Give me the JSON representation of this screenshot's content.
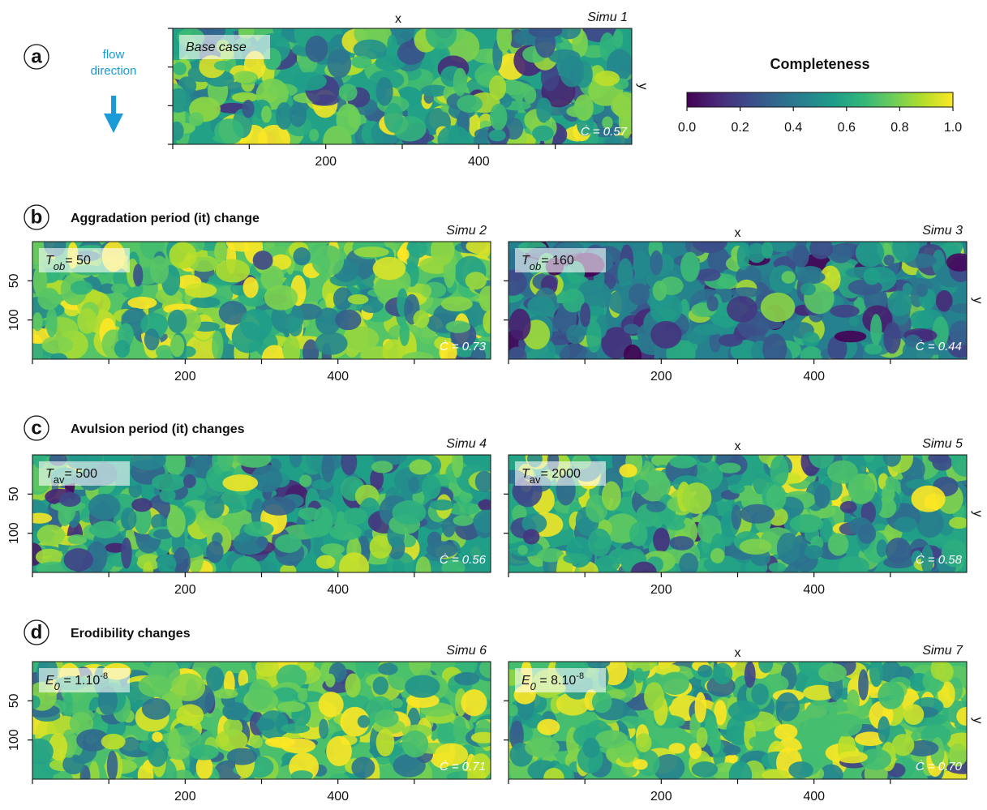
{
  "flow_label": [
    "flow",
    "direction"
  ],
  "sections": [
    {
      "letter": "a"
    },
    {
      "letter": "b",
      "title": "Aggradation period (it) change"
    },
    {
      "letter": "c",
      "title": "Avulsion period (it) changes"
    },
    {
      "letter": "d",
      "title": "Erodibility changes"
    }
  ],
  "chart_data": [
    {
      "type": "colorbar",
      "title": "Completeness",
      "colormap": "viridis",
      "xlim": [
        0,
        1
      ],
      "xticks": [
        {
          "value": 0,
          "label": "0.0"
        },
        {
          "value": 0.2,
          "label": "0.2"
        },
        {
          "value": 0.4,
          "label": "0.4"
        },
        {
          "value": 0.6,
          "label": "0.6"
        },
        {
          "value": 0.8,
          "label": "0.8"
        },
        {
          "value": 1,
          "label": "1.0"
        }
      ]
    },
    {
      "type": "heatmap",
      "title": "Simu 1",
      "xlabel": "x",
      "ylabel": "y",
      "annotation": [
        {
          "text": "Base case",
          "style": "italic"
        }
      ],
      "completeness": 0.57,
      "completeness_label": "Ċ = 0.57",
      "xlim": [
        0,
        600
      ],
      "ylim": [
        0,
        150
      ],
      "xticks": [
        200,
        400
      ],
      "xminor": [
        0,
        100,
        300,
        500
      ],
      "yticks": [
        0,
        50,
        100,
        150
      ],
      "ytick_labels": false
    },
    {
      "type": "heatmap",
      "title": "Simu 2",
      "annotation": [
        {
          "text": "T",
          "style": "italic"
        },
        {
          "text": "ob",
          "style": "italic-sub"
        },
        {
          "text": "= 50"
        }
      ],
      "completeness": 0.73,
      "completeness_label": "Ċ = 0.73",
      "xlim": [
        0,
        600
      ],
      "ylim": [
        0,
        150
      ],
      "xticks": [
        200,
        400
      ],
      "xminor": [
        0,
        100,
        300,
        500
      ],
      "yticks": [
        50,
        100
      ],
      "ytick_labels": true
    },
    {
      "type": "heatmap",
      "title": "Simu 3",
      "xlabel": "x",
      "ylabel": "y",
      "annotation": [
        {
          "text": "T",
          "style": "italic"
        },
        {
          "text": "ob",
          "style": "italic-sub"
        },
        {
          "text": "= 160"
        }
      ],
      "completeness": 0.44,
      "completeness_label": "Ċ = 0.44",
      "xlim": [
        0,
        600
      ],
      "ylim": [
        0,
        150
      ],
      "xticks": [
        200,
        400
      ],
      "xminor": [
        0,
        100,
        300,
        500
      ],
      "yticks": [
        50,
        100
      ],
      "ytick_labels": false
    },
    {
      "type": "heatmap",
      "title": "Simu 4",
      "annotation": [
        {
          "text": "T",
          "style": "italic"
        },
        {
          "text": "av",
          "style": "sub"
        },
        {
          "text": "= 500"
        }
      ],
      "completeness": 0.56,
      "completeness_label": "Ċ = 0.56",
      "xlim": [
        0,
        600
      ],
      "ylim": [
        0,
        150
      ],
      "xticks": [
        200,
        400
      ],
      "xminor": [
        0,
        100,
        300,
        500
      ],
      "yticks": [
        50,
        100
      ],
      "ytick_labels": true
    },
    {
      "type": "heatmap",
      "title": "Simu 5",
      "xlabel": "x",
      "ylabel": "y",
      "annotation": [
        {
          "text": "T",
          "style": "italic"
        },
        {
          "text": "av",
          "style": "sub"
        },
        {
          "text": "= 2000"
        }
      ],
      "completeness": 0.58,
      "completeness_label": "Ċ = 0.58",
      "xlim": [
        0,
        600
      ],
      "ylim": [
        0,
        150
      ],
      "xticks": [
        200,
        400
      ],
      "xminor": [
        0,
        100,
        300,
        500
      ],
      "yticks": [
        50,
        100
      ],
      "ytick_labels": false
    },
    {
      "type": "heatmap",
      "title": "Simu 6",
      "annotation": [
        {
          "text": "E",
          "style": "italic"
        },
        {
          "text": "0",
          "style": "italic-sub"
        },
        {
          "text": " = 1.10"
        },
        {
          "text": "-8",
          "style": "sup"
        }
      ],
      "completeness": 0.71,
      "completeness_label": "Ċ = 0.71",
      "xlim": [
        0,
        600
      ],
      "ylim": [
        0,
        150
      ],
      "xticks": [
        200,
        400
      ],
      "xminor": [
        0,
        100,
        300,
        500
      ],
      "yticks": [
        50,
        100
      ],
      "ytick_labels": true
    },
    {
      "type": "heatmap",
      "title": "Simu 7",
      "xlabel": "x",
      "ylabel": "y",
      "annotation": [
        {
          "text": "E",
          "style": "italic"
        },
        {
          "text": "0",
          "style": "italic-sub"
        },
        {
          "text": " = 8.10"
        },
        {
          "text": "-8",
          "style": "sup"
        }
      ],
      "completeness": 0.7,
      "completeness_label": "Ċ = 0.70",
      "xlim": [
        0,
        600
      ],
      "ylim": [
        0,
        150
      ],
      "xticks": [
        200,
        400
      ],
      "xminor": [
        0,
        100,
        300,
        500
      ],
      "yticks": [
        50,
        100
      ],
      "ytick_labels": false
    }
  ]
}
